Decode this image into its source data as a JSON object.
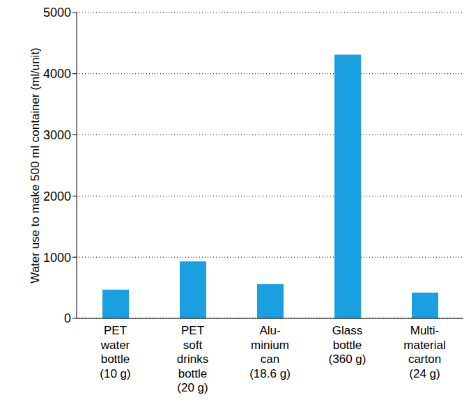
{
  "chart_data": {
    "type": "bar",
    "y_label": "Water use to make 500 ml container (ml/unit)",
    "categories": [
      "PET\nwater\nbottle\n(10 g)",
      "PET\nsoft\ndrinks\nbottle\n(20 g)",
      "Alu-\nminium\ncan\n(18.6 g)",
      "Glass\nbottle\n(360 g)",
      "Multi-\nmaterial\ncarton\n(24 g)"
    ],
    "values": [
      470,
      930,
      560,
      4310,
      420
    ],
    "color": "#1a9fe0",
    "ylim": [
      0,
      5000
    ],
    "yticks": [
      0,
      1000,
      2000,
      3000,
      4000,
      5000
    ],
    "grid": true
  }
}
